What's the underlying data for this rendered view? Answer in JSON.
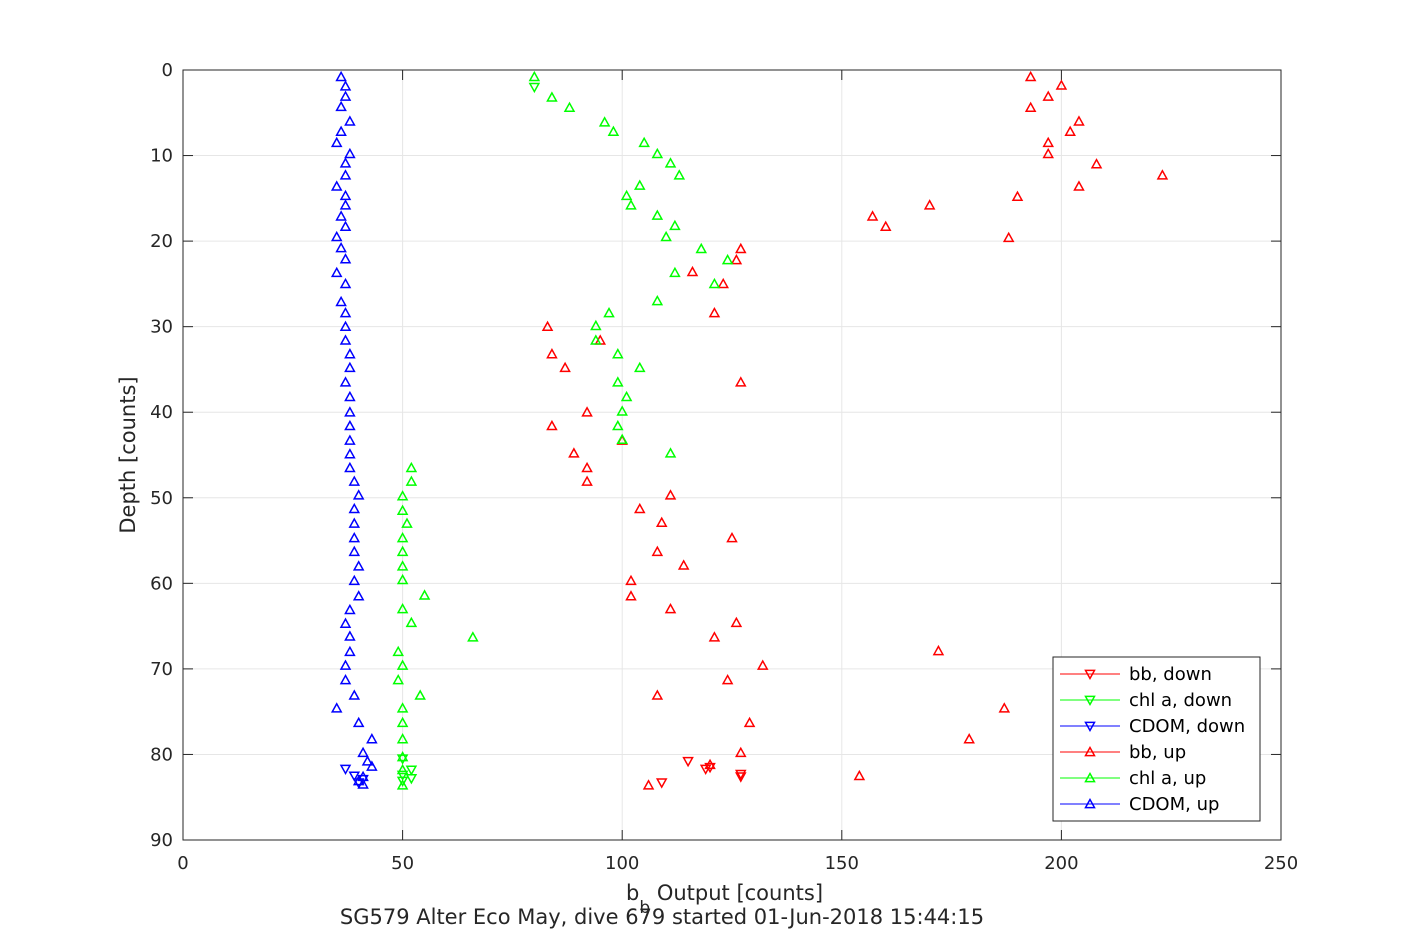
{
  "chart_data": {
    "type": "scatter",
    "title": "SG579 Alter Eco May, dive 679 started 01-Jun-2018 15:44:15",
    "xlabel_main": "b",
    "xlabel_sub": "b",
    "xlabel_rest": " Output [counts]",
    "ylabel": "Depth [counts]",
    "xlim": [
      0,
      250
    ],
    "ylim": [
      0,
      90
    ],
    "y_reversed": true,
    "grid": true,
    "legend_position": "bottom-right",
    "xticks": [
      "0",
      "50",
      "100",
      "150",
      "200",
      "250"
    ],
    "yticks": [
      "0",
      "10",
      "20",
      "30",
      "40",
      "50",
      "60",
      "70",
      "80",
      "90"
    ],
    "series": [
      {
        "name": "bb, down",
        "color": "#ff0000",
        "marker": "triangle-down",
        "points": [
          [
            115,
            80.8
          ],
          [
            120,
            81.5
          ],
          [
            119,
            81.7
          ],
          [
            127,
            82.3
          ],
          [
            127,
            82.6
          ],
          [
            109,
            83.3
          ]
        ]
      },
      {
        "name": "chl a, down",
        "color": "#00ff00",
        "marker": "triangle-down",
        "points": [
          [
            80,
            2
          ],
          [
            50,
            80.5
          ],
          [
            52,
            81.8
          ],
          [
            50,
            82.4
          ],
          [
            52,
            82.8
          ],
          [
            50,
            83.1
          ]
        ]
      },
      {
        "name": "CDOM, down",
        "color": "#0000ff",
        "marker": "triangle-down",
        "points": [
          [
            37,
            81.7
          ],
          [
            39,
            82.5
          ],
          [
            41,
            82.9
          ],
          [
            40,
            83.3
          ]
        ]
      },
      {
        "name": "bb, up",
        "color": "#ff0000",
        "marker": "triangle-up",
        "points": [
          [
            193,
            0.8
          ],
          [
            200,
            1.8
          ],
          [
            197,
            3.1
          ],
          [
            193,
            4.4
          ],
          [
            204,
            6
          ],
          [
            202,
            7.2
          ],
          [
            197,
            8.5
          ],
          [
            197,
            9.8
          ],
          [
            208,
            11
          ],
          [
            223,
            12.3
          ],
          [
            204,
            13.6
          ],
          [
            190,
            14.8
          ],
          [
            170,
            15.8
          ],
          [
            157,
            17.1
          ],
          [
            160,
            18.3
          ],
          [
            188,
            19.6
          ],
          [
            127,
            20.9
          ],
          [
            126,
            22.2
          ],
          [
            116,
            23.6
          ],
          [
            123,
            25
          ],
          [
            121,
            28.4
          ],
          [
            83,
            30
          ],
          [
            95,
            31.6
          ],
          [
            84,
            33.2
          ],
          [
            87,
            34.8
          ],
          [
            127,
            36.5
          ],
          [
            92,
            40
          ],
          [
            84,
            41.6
          ],
          [
            100,
            43.3
          ],
          [
            89,
            44.8
          ],
          [
            92,
            46.5
          ],
          [
            92,
            48.1
          ],
          [
            111,
            49.7
          ],
          [
            104,
            51.3
          ],
          [
            109,
            52.9
          ],
          [
            125,
            54.7
          ],
          [
            108,
            56.3
          ],
          [
            114,
            57.9
          ],
          [
            102,
            59.7
          ],
          [
            102,
            61.5
          ],
          [
            111,
            63
          ],
          [
            126,
            64.6
          ],
          [
            121,
            66.3
          ],
          [
            172,
            67.9
          ],
          [
            132,
            69.6
          ],
          [
            124,
            71.3
          ],
          [
            108,
            73.1
          ],
          [
            187,
            74.6
          ],
          [
            129,
            76.3
          ],
          [
            179,
            78.2
          ],
          [
            127,
            79.8
          ],
          [
            120,
            81.2
          ],
          [
            154,
            82.5
          ],
          [
            106,
            83.6
          ]
        ]
      },
      {
        "name": "chl a, up",
        "color": "#00ff00",
        "marker": "triangle-up",
        "points": [
          [
            80,
            0.8
          ],
          [
            84,
            3.2
          ],
          [
            88,
            4.4
          ],
          [
            96,
            6.1
          ],
          [
            98,
            7.2
          ],
          [
            105,
            8.5
          ],
          [
            108,
            9.8
          ],
          [
            111,
            10.9
          ],
          [
            113,
            12.3
          ],
          [
            104,
            13.5
          ],
          [
            101,
            14.7
          ],
          [
            102,
            15.8
          ],
          [
            108,
            17
          ],
          [
            112,
            18.2
          ],
          [
            110,
            19.5
          ],
          [
            118,
            20.9
          ],
          [
            124,
            22.2
          ],
          [
            112,
            23.7
          ],
          [
            121,
            25
          ],
          [
            108,
            27
          ],
          [
            97,
            28.4
          ],
          [
            94,
            29.9
          ],
          [
            94,
            31.6
          ],
          [
            99,
            33.2
          ],
          [
            104,
            34.8
          ],
          [
            99,
            36.5
          ],
          [
            101,
            38.2
          ],
          [
            100,
            39.9
          ],
          [
            99,
            41.6
          ],
          [
            100,
            43.2
          ],
          [
            111,
            44.8
          ],
          [
            52,
            46.5
          ],
          [
            52,
            48.1
          ],
          [
            50,
            49.8
          ],
          [
            50,
            51.5
          ],
          [
            51,
            53
          ],
          [
            50,
            54.7
          ],
          [
            50,
            56.3
          ],
          [
            50,
            58
          ],
          [
            50,
            59.6
          ],
          [
            55,
            61.4
          ],
          [
            50,
            63
          ],
          [
            52,
            64.6
          ],
          [
            66,
            66.3
          ],
          [
            49,
            68
          ],
          [
            50,
            69.6
          ],
          [
            49,
            71.3
          ],
          [
            54,
            73.1
          ],
          [
            50,
            74.6
          ],
          [
            50,
            76.3
          ],
          [
            50,
            78.2
          ],
          [
            50,
            80.3
          ],
          [
            50,
            81.8
          ],
          [
            50,
            83.6
          ]
        ]
      },
      {
        "name": "CDOM, up",
        "color": "#0000ff",
        "marker": "triangle-up",
        "points": [
          [
            36,
            0.8
          ],
          [
            37,
            1.9
          ],
          [
            37,
            3.1
          ],
          [
            36,
            4.3
          ],
          [
            38,
            6
          ],
          [
            36,
            7.2
          ],
          [
            35,
            8.5
          ],
          [
            38,
            9.8
          ],
          [
            37,
            10.9
          ],
          [
            37,
            12.3
          ],
          [
            35,
            13.6
          ],
          [
            37,
            14.7
          ],
          [
            37,
            15.8
          ],
          [
            36,
            17.1
          ],
          [
            37,
            18.3
          ],
          [
            35,
            19.5
          ],
          [
            36,
            20.8
          ],
          [
            37,
            22.1
          ],
          [
            35,
            23.7
          ],
          [
            37,
            25
          ],
          [
            36,
            27.1
          ],
          [
            37,
            28.4
          ],
          [
            37,
            30
          ],
          [
            37,
            31.6
          ],
          [
            38,
            33.2
          ],
          [
            38,
            34.8
          ],
          [
            37,
            36.5
          ],
          [
            38,
            38.2
          ],
          [
            38,
            40
          ],
          [
            38,
            41.6
          ],
          [
            38,
            43.3
          ],
          [
            38,
            44.9
          ],
          [
            38,
            46.5
          ],
          [
            39,
            48.1
          ],
          [
            40,
            49.7
          ],
          [
            39,
            51.3
          ],
          [
            39,
            53
          ],
          [
            39,
            54.7
          ],
          [
            39,
            56.3
          ],
          [
            40,
            58
          ],
          [
            39,
            59.7
          ],
          [
            40,
            61.5
          ],
          [
            38,
            63.1
          ],
          [
            37,
            64.7
          ],
          [
            38,
            66.2
          ],
          [
            38,
            68
          ],
          [
            37,
            69.6
          ],
          [
            37,
            71.3
          ],
          [
            39,
            73.1
          ],
          [
            35,
            74.6
          ],
          [
            40,
            76.3
          ],
          [
            43,
            78.2
          ],
          [
            41,
            79.8
          ],
          [
            42,
            80.8
          ],
          [
            43,
            81.4
          ],
          [
            41,
            82.6
          ],
          [
            41,
            83.5
          ],
          [
            40,
            83.1
          ]
        ]
      }
    ]
  }
}
